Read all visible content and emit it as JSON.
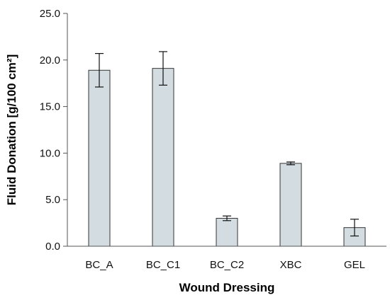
{
  "chart_data": {
    "type": "bar",
    "title": "",
    "xlabel": "Wound Dressing",
    "ylabel": "Fluid Donation [g/100 cm²]",
    "ylim": [
      0,
      25
    ],
    "yticks": [
      0,
      5,
      10,
      15,
      20,
      25
    ],
    "ytick_labels": [
      "0.0",
      "5.0",
      "10.0",
      "15.0",
      "20.0",
      "25.0"
    ],
    "grid": false,
    "legend": "none",
    "categories": [
      "BC_A",
      "BC_C1",
      "BC_C2",
      "XBC",
      "GEL"
    ],
    "values": [
      18.9,
      19.1,
      3.0,
      8.9,
      2.0
    ],
    "errors": [
      1.8,
      1.8,
      0.25,
      0.15,
      0.9
    ],
    "bar_color": "#d3dde1",
    "bar_edge_color": "#333333"
  }
}
